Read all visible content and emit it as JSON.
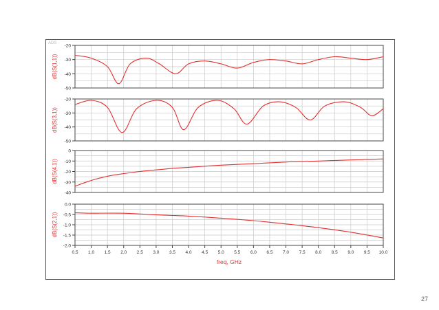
{
  "app": {
    "tag": "ADS",
    "page_number": "27"
  },
  "colors": {
    "trace": "#e03030",
    "grid": "#c9c9c9",
    "axis": "#444444",
    "label": "#e03030",
    "frame": "#555555"
  },
  "chart_data": [
    {
      "type": "line",
      "ylabel": "dB(S(1,1))",
      "ylim": [
        -50,
        -20
      ],
      "yticks": [
        "-20",
        "-30",
        "-40",
        "-50"
      ],
      "xlim": [
        0.5,
        10.0
      ],
      "grid": true,
      "series": [
        {
          "x": [
            0.5,
            1.0,
            1.5,
            1.85,
            2.2,
            2.7,
            3.1,
            3.6,
            4.0,
            4.5,
            5.0,
            5.5,
            6.0,
            6.5,
            7.0,
            7.5,
            8.0,
            8.5,
            9.0,
            9.5,
            10.0
          ],
          "y": [
            -27,
            -29,
            -35,
            -47,
            -33,
            -29,
            -33,
            -40,
            -33,
            -31,
            -33,
            -36,
            -32,
            -30,
            -31,
            -33,
            -30,
            -28,
            -29,
            -30,
            -28
          ]
        }
      ]
    },
    {
      "type": "line",
      "ylabel": "dB(S(3,1))",
      "ylim": [
        -50,
        -20
      ],
      "yticks": [
        "-20",
        "-30",
        "-40",
        "-50"
      ],
      "xlim": [
        0.5,
        10.0
      ],
      "grid": true,
      "series": [
        {
          "x": [
            0.5,
            1.0,
            1.5,
            1.95,
            2.4,
            3.0,
            3.5,
            3.85,
            4.3,
            4.9,
            5.4,
            5.8,
            6.3,
            6.8,
            7.3,
            7.75,
            8.2,
            8.8,
            9.3,
            9.65,
            10.0
          ],
          "y": [
            -24,
            -21,
            -26,
            -44,
            -27,
            -21,
            -26,
            -42,
            -26,
            -21,
            -27,
            -38,
            -25,
            -22,
            -26,
            -35,
            -25,
            -22,
            -26,
            -32,
            -27
          ]
        }
      ]
    },
    {
      "type": "line",
      "ylabel": "dB(S(4,1))",
      "ylim": [
        -40,
        0
      ],
      "yticks": [
        "0",
        "-10",
        "-20",
        "-30",
        "-40"
      ],
      "xlim": [
        0.5,
        10.0
      ],
      "grid": true,
      "series": [
        {
          "x": [
            0.5,
            1.0,
            1.5,
            2.0,
            2.5,
            3.0,
            3.5,
            4.0,
            5.0,
            6.0,
            7.0,
            8.0,
            9.0,
            10.0
          ],
          "y": [
            -34,
            -28.5,
            -24.5,
            -22,
            -20,
            -18.5,
            -17,
            -16,
            -14,
            -12.5,
            -11,
            -10,
            -9,
            -8
          ]
        }
      ]
    },
    {
      "type": "line",
      "ylabel": "dB(S(2,1))",
      "ylim": [
        -2.0,
        0.0
      ],
      "yticks": [
        "0.0",
        "-0.5",
        "-1.0",
        "-1.5",
        "-2.0"
      ],
      "xlim": [
        0.5,
        10.0
      ],
      "xticks": [
        "0.5",
        "1.0",
        "1.5",
        "2.0",
        "2.5",
        "3.0",
        "3.5",
        "4.0",
        "4.5",
        "5.0",
        "5.5",
        "6.0",
        "6.5",
        "7.0",
        "7.5",
        "8.0",
        "8.5",
        "9.0",
        "9.5",
        "10.0"
      ],
      "xlabel": "freq, GHz",
      "grid": true,
      "series": [
        {
          "x": [
            0.5,
            1.0,
            2.0,
            3.0,
            4.0,
            5.0,
            6.0,
            7.0,
            8.0,
            9.0,
            10.0
          ],
          "y": [
            -0.42,
            -0.44,
            -0.44,
            -0.52,
            -0.58,
            -0.68,
            -0.8,
            -0.96,
            -1.14,
            -1.36,
            -1.64
          ]
        }
      ]
    }
  ]
}
